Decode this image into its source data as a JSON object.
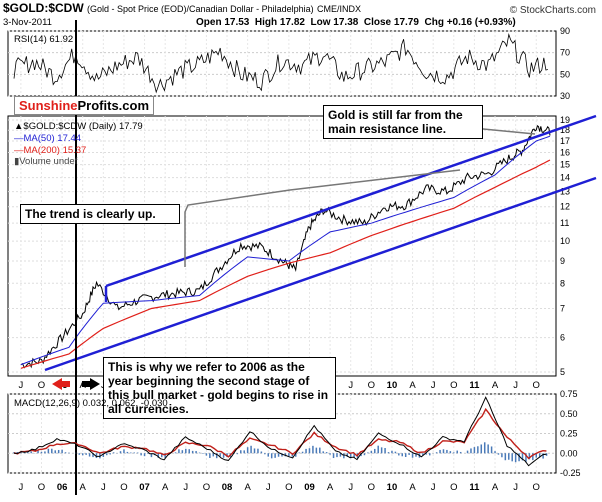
{
  "header": {
    "symbol": "$GOLD:$CDW",
    "description": "(Gold - Spot Price (EOD)/Canadian Dollar - Philadelphia)",
    "exchange": "CME/INDX",
    "date": "3-Nov-2011",
    "open": "Open 17.53",
    "high": "High 17.82",
    "low": "Low 17.38",
    "close": "Close 17.79",
    "chg": "Chg +0.16 (+0.93%)",
    "copyright": "© StockCharts.com"
  },
  "brand": {
    "part1": "Sunshine",
    "part2": "Profits.com"
  },
  "rsi": {
    "label": "RSI(14) 61.92"
  },
  "legend": {
    "price": "$GOLD:$CDW (Daily) 17.79",
    "ma50": "MA(50) 17.44",
    "ma200": "MA(200) 15.37",
    "volume": "Volume undef"
  },
  "macd": {
    "label": "MACD(12,26,9) 0.032, 0.062, -0.030"
  },
  "annotations": {
    "resistance": "Gold is still far from the main resistance line.",
    "trend": "The trend is clearly up.",
    "year2006": "This is why we refer to 2006 as the year beginning the second stage of this bull market - gold begins to rise in all currencies."
  },
  "colors": {
    "channel": "#1f1fd4",
    "ma50": "#1f1fd4",
    "ma200": "#e0201a",
    "price": "#000000",
    "macd_signal": "#c0201a",
    "histogram": "#4a7ab8",
    "arrow_left": "#e0201a"
  },
  "chart_data": [
    {
      "type": "line",
      "title": "$GOLD:$CDW (Daily)",
      "scale": "log",
      "ylim": [
        5,
        19
      ],
      "yticks": [
        5,
        6,
        7,
        8,
        9,
        10,
        11,
        12,
        13,
        14,
        15,
        16,
        17,
        18,
        19
      ],
      "x_month_labels": [
        "J",
        "O",
        "06",
        "A",
        "J",
        "O",
        "07",
        "A",
        "J",
        "O",
        "08",
        "A",
        "J",
        "O",
        "09",
        "A",
        "J",
        "O",
        "10",
        "A",
        "J",
        "O",
        "11",
        "A",
        "J",
        "O"
      ],
      "series": [
        {
          "name": "$GOLD:$CDW (Daily)",
          "x": [
            "2005-06",
            "2005-09",
            "2005-12",
            "2006-03",
            "2006-05",
            "2006-08",
            "2006-11",
            "2007-02",
            "2007-05",
            "2007-08",
            "2007-11",
            "2008-02",
            "2008-05",
            "2008-08",
            "2008-10",
            "2008-12",
            "2009-02",
            "2009-05",
            "2009-08",
            "2009-11",
            "2010-02",
            "2010-05",
            "2010-08",
            "2010-11",
            "2011-02",
            "2011-05",
            "2011-07",
            "2011-09",
            "2011-11"
          ],
          "values": [
            5.2,
            5.3,
            6.0,
            6.8,
            8.0,
            7.0,
            7.3,
            7.5,
            7.6,
            7.7,
            8.7,
            9.8,
            9.7,
            9.0,
            8.6,
            10.8,
            11.8,
            11.2,
            11.0,
            12.0,
            12.1,
            13.2,
            13.0,
            14.0,
            14.3,
            15.5,
            16.2,
            18.5,
            17.8
          ]
        },
        {
          "name": "MA(50)",
          "x": [
            "2005-06",
            "2006-01",
            "2006-06",
            "2007-01",
            "2007-08",
            "2008-03",
            "2008-09",
            "2009-03",
            "2009-09",
            "2010-03",
            "2010-09",
            "2011-03",
            "2011-09",
            "2011-11"
          ],
          "values": [
            5.2,
            5.7,
            7.2,
            7.3,
            7.5,
            9.2,
            9.0,
            10.5,
            11.0,
            11.8,
            12.6,
            14.2,
            17.0,
            17.44
          ]
        },
        {
          "name": "MA(200)",
          "x": [
            "2005-06",
            "2006-01",
            "2006-06",
            "2007-01",
            "2007-08",
            "2008-03",
            "2008-09",
            "2009-03",
            "2009-09",
            "2010-03",
            "2010-09",
            "2011-03",
            "2011-09",
            "2011-11"
          ],
          "values": [
            5.1,
            5.5,
            6.3,
            7.0,
            7.3,
            8.3,
            8.9,
            9.4,
            10.3,
            11.1,
            11.9,
            13.3,
            14.8,
            15.37
          ]
        }
      ]
    },
    {
      "type": "line",
      "title": "RSI(14)",
      "ylim": [
        30,
        90
      ],
      "yticks": [
        30,
        50,
        70,
        90
      ],
      "series": [
        {
          "name": "RSI(14)",
          "values": [
            55,
            62,
            48,
            70,
            45,
            58,
            66,
            40,
            52,
            60,
            72,
            50,
            44,
            63,
            58,
            69,
            47,
            55,
            61,
            75,
            52,
            48,
            66,
            58,
            80,
            55,
            62
          ]
        }
      ]
    },
    {
      "type": "line",
      "title": "MACD(12,26,9)",
      "ylim": [
        -0.25,
        0.75
      ],
      "yticks": [
        -0.25,
        0.0,
        0.25,
        0.5,
        0.75
      ],
      "series": [
        {
          "name": "MACD",
          "values": [
            0.0,
            0.05,
            0.18,
            0.1,
            -0.05,
            0.12,
            0.05,
            -0.08,
            0.2,
            0.06,
            -0.1,
            0.28,
            0.05,
            -0.05,
            0.35,
            0.02,
            -0.08,
            0.25,
            0.12,
            -0.05,
            0.2,
            0.15,
            0.7,
            0.1,
            -0.15,
            0.03
          ]
        },
        {
          "name": "Signal",
          "values": [
            0.0,
            0.03,
            0.12,
            0.12,
            0.0,
            0.08,
            0.07,
            -0.03,
            0.13,
            0.1,
            -0.03,
            0.18,
            0.1,
            0.0,
            0.25,
            0.08,
            -0.02,
            0.17,
            0.14,
            0.0,
            0.15,
            0.14,
            0.55,
            0.2,
            -0.05,
            0.06
          ]
        },
        {
          "name": "Histogram",
          "values": [
            0.0,
            0.02,
            0.06,
            -0.02,
            -0.05,
            0.04,
            -0.02,
            -0.05,
            0.07,
            -0.04,
            -0.07,
            0.1,
            -0.05,
            -0.05,
            0.1,
            -0.06,
            -0.06,
            0.08,
            -0.02,
            -0.05,
            0.05,
            0.01,
            0.15,
            -0.1,
            -0.1,
            -0.03
          ]
        }
      ]
    }
  ]
}
